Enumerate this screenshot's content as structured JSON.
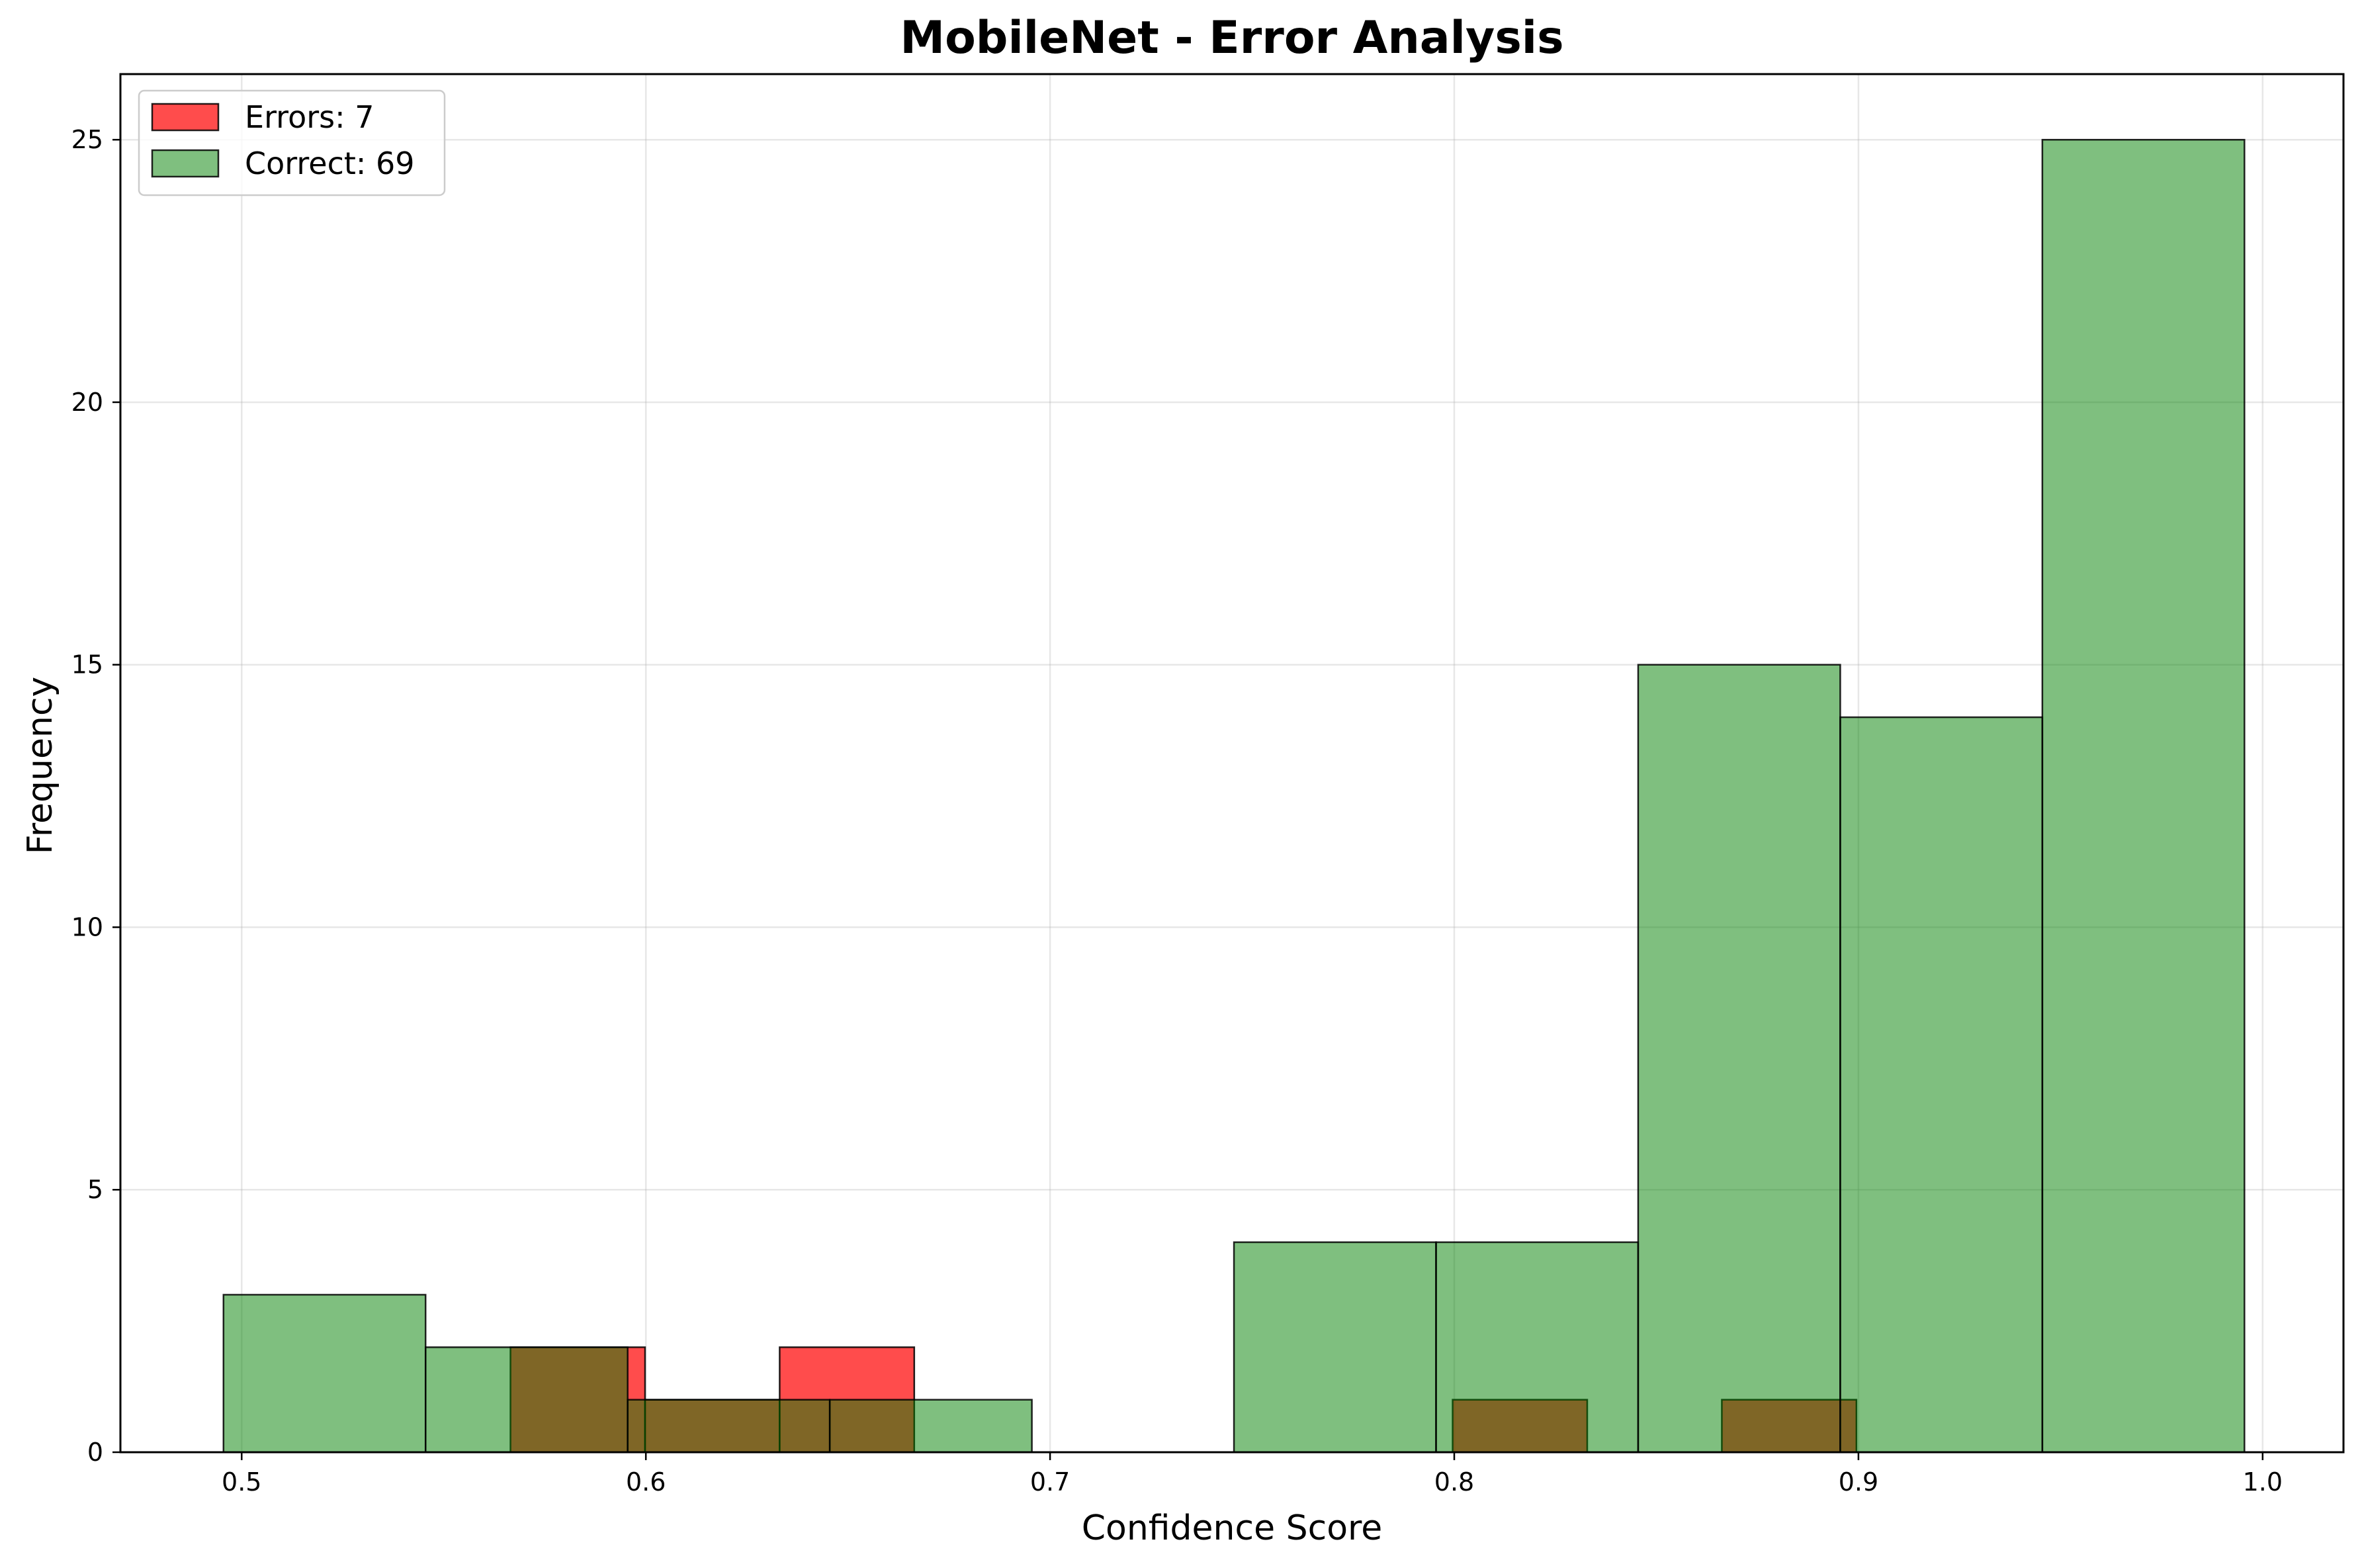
{
  "chart_data": {
    "type": "histogram",
    "title": "MobileNet - Error Analysis",
    "xlabel": "Confidence Score",
    "ylabel": "Frequency",
    "xlim": [
      0.47,
      1.02
    ],
    "ylim": [
      0,
      26.25
    ],
    "xticks": [
      {
        "value": 0.5,
        "label": "0.5"
      },
      {
        "value": 0.6,
        "label": "0.6"
      },
      {
        "value": 0.7,
        "label": "0.7"
      },
      {
        "value": 0.8,
        "label": "0.8"
      },
      {
        "value": 0.9,
        "label": "0.9"
      },
      {
        "value": 1.0,
        "label": "1.0"
      }
    ],
    "yticks": [
      {
        "value": 0,
        "label": "0"
      },
      {
        "value": 5,
        "label": "5"
      },
      {
        "value": 10,
        "label": "10"
      },
      {
        "value": 15,
        "label": "15"
      },
      {
        "value": 20,
        "label": "20"
      },
      {
        "value": 25,
        "label": "25"
      }
    ],
    "grid": true,
    "legend_position": "top-left",
    "series": [
      {
        "name": "Errors: 7",
        "color": "#ff0000",
        "alpha": 0.7,
        "bins": [
          {
            "x0": 0.5665,
            "x1": 0.5998,
            "count": 2
          },
          {
            "x0": 0.5998,
            "x1": 0.6331,
            "count": 1
          },
          {
            "x0": 0.6331,
            "x1": 0.6664,
            "count": 2
          },
          {
            "x0": 0.6664,
            "x1": 0.6997,
            "count": 0
          },
          {
            "x0": 0.6997,
            "x1": 0.733,
            "count": 0
          },
          {
            "x0": 0.733,
            "x1": 0.7663,
            "count": 0
          },
          {
            "x0": 0.7663,
            "x1": 0.7996,
            "count": 0
          },
          {
            "x0": 0.7996,
            "x1": 0.8329,
            "count": 1
          },
          {
            "x0": 0.8329,
            "x1": 0.8662,
            "count": 0
          },
          {
            "x0": 0.8662,
            "x1": 0.8995,
            "count": 1
          }
        ]
      },
      {
        "name": "Correct: 69",
        "color": "#008000",
        "alpha": 0.5,
        "bins": [
          {
            "x0": 0.4955,
            "x1": 0.5455,
            "count": 3
          },
          {
            "x0": 0.5455,
            "x1": 0.5955,
            "count": 2
          },
          {
            "x0": 0.5955,
            "x1": 0.6455,
            "count": 1
          },
          {
            "x0": 0.6455,
            "x1": 0.6955,
            "count": 1
          },
          {
            "x0": 0.6955,
            "x1": 0.7455,
            "count": 0
          },
          {
            "x0": 0.7455,
            "x1": 0.7955,
            "count": 4
          },
          {
            "x0": 0.7955,
            "x1": 0.8455,
            "count": 4
          },
          {
            "x0": 0.8455,
            "x1": 0.8955,
            "count": 15
          },
          {
            "x0": 0.8955,
            "x1": 0.9455,
            "count": 14
          },
          {
            "x0": 0.9455,
            "x1": 0.9955,
            "count": 25
          }
        ]
      }
    ]
  }
}
